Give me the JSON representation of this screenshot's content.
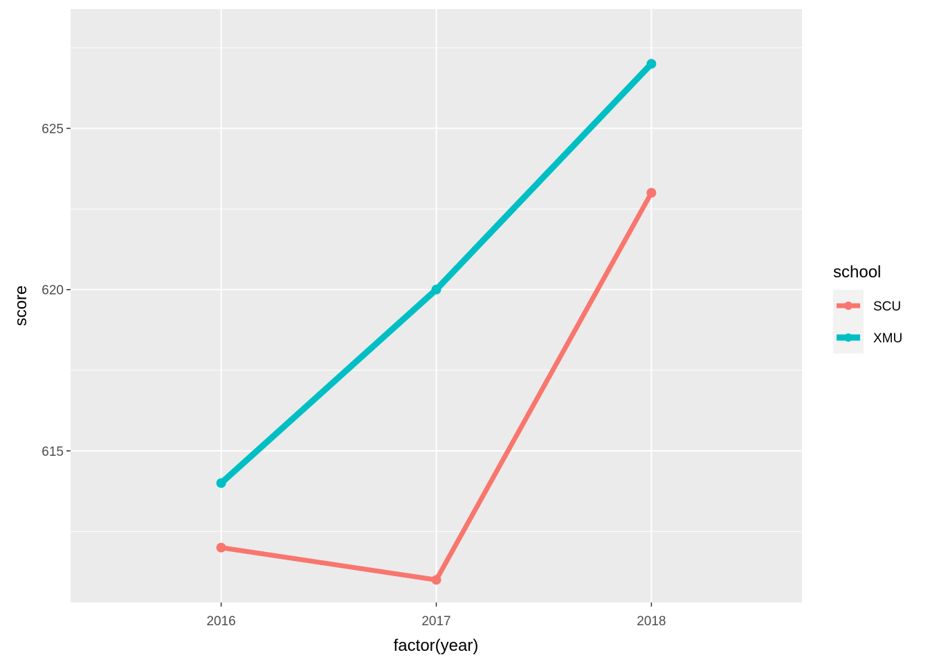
{
  "chart_data": {
    "type": "line",
    "xlabel": "factor(year)",
    "ylabel": "score",
    "categories": [
      "2016",
      "2017",
      "2018"
    ],
    "ylim": [
      610.3,
      628.7
    ],
    "yticks": [
      615,
      620,
      625
    ],
    "grid": true,
    "legend": {
      "title": "school",
      "position": "right"
    },
    "series": [
      {
        "name": "SCU",
        "values": [
          612,
          611,
          623
        ],
        "color": "#F8766D"
      },
      {
        "name": "XMU",
        "values": [
          614,
          620,
          627
        ],
        "color": "#00BFC4"
      }
    ],
    "panel_background": "#EBEBEB",
    "grid_color": "#FFFFFF"
  }
}
